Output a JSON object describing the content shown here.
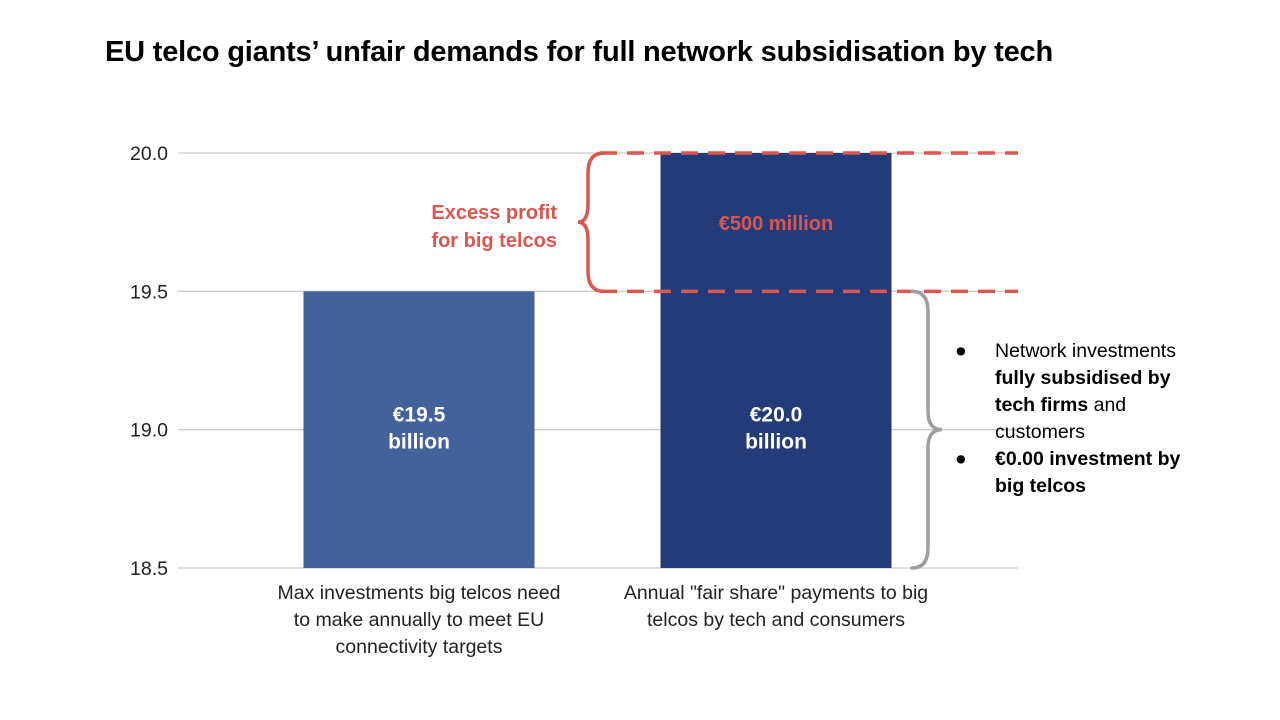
{
  "title": "EU telco giants’ unfair demands for full network subsidisation by tech",
  "colors": {
    "bar_1": "#43619a",
    "bar_2": "#243b7a",
    "highlight": "#d9574f",
    "grid": "#cccccc",
    "brace": "#9e9e9e",
    "axis_text": "#222222",
    "bar_label": "#ffffff"
  },
  "chart_data": {
    "type": "bar",
    "title": "EU telco giants’ unfair demands for full network subsidisation by tech",
    "xlabel": "",
    "ylabel": "",
    "ylim": [
      18.5,
      20.0
    ],
    "yticks": [
      "18.5",
      "19.0",
      "19.5",
      "20.0"
    ],
    "grid": true,
    "categories": [
      "Max investments big telcos need to make annually to meet EU connectivity targets",
      "Annual \"fair share\" payments to big telcos by tech and consumers"
    ],
    "category_label_lines": [
      [
        "Max investments big telcos need",
        "to make annually to meet EU",
        "connectivity targets"
      ],
      [
        "Annual \"fair share\" payments to big",
        "telcos by tech and consumers"
      ]
    ],
    "values": [
      19.5,
      20.0
    ],
    "data_labels": [
      [
        "€19.5",
        "billion"
      ],
      [
        "€20.0",
        "billion"
      ]
    ],
    "annotations": {
      "excess_label": [
        "Excess profit",
        "for big telcos"
      ],
      "excess_range": [
        19.5,
        20.0
      ],
      "excess_value_label": "€500 million",
      "subsidised_range": [
        18.5,
        19.5
      ]
    }
  },
  "notes": [
    {
      "plain_before": "Network investments ",
      "bold": "fully subsidised by tech firms",
      "plain_after": " and customers"
    },
    {
      "plain_before": "",
      "bold": "€0.00 investment by big telcos",
      "plain_after": ""
    }
  ],
  "bullet": "●"
}
